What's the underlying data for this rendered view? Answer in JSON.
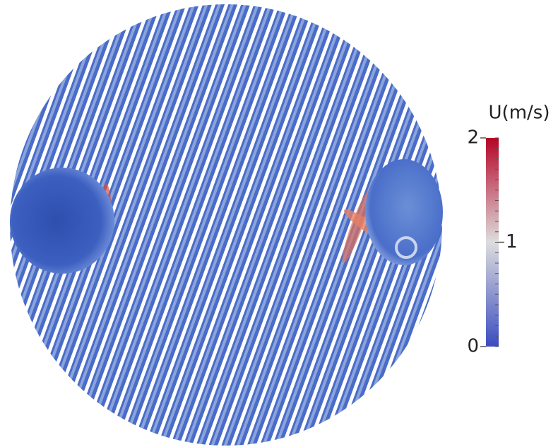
{
  "colorbar": {
    "title": "U(m/s)",
    "range": [
      0,
      2
    ],
    "ticks": [
      0,
      1,
      2
    ],
    "colors": [
      "#3b4cc0",
      "#dddddd",
      "#b40426"
    ]
  }
}
